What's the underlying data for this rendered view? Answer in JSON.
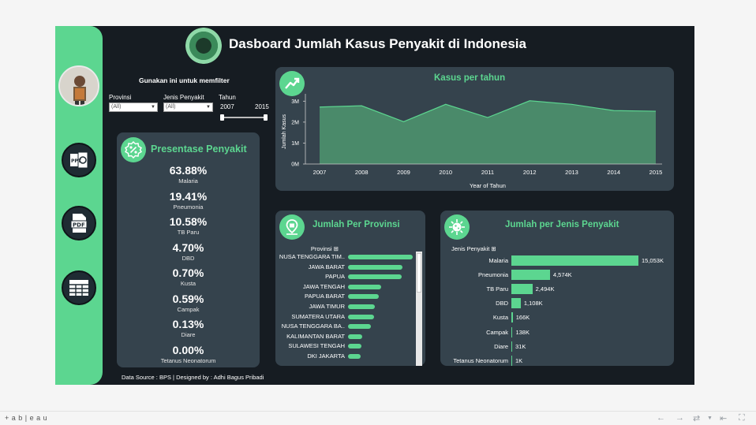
{
  "dashboard": {
    "title": "Dasboard Jumlah Kasus Penyakit di Indonesia",
    "footer": "Data Source : BPS | Designed by : Adhi Bagus Pribadi"
  },
  "sidebar": {
    "buttons": [
      {
        "name": "ppt-export-button",
        "label": "PPT"
      },
      {
        "name": "pdf-export-button",
        "label": "PDF"
      },
      {
        "name": "table-view-button",
        "label": ""
      }
    ]
  },
  "filters": {
    "heading": "Gunakan ini untuk memfilter",
    "provinsi_label": "Provinsi",
    "provinsi_value": "(All)",
    "jenis_label": "Jenis Penyakit",
    "jenis_value": "(All)",
    "tahun_label": "Tahun",
    "tahun_min": "2007",
    "tahun_max": "2015"
  },
  "presentase": {
    "title": "Presentase Penyakit",
    "items": [
      {
        "value": "63.88%",
        "label": "Malaria"
      },
      {
        "value": "19.41%",
        "label": "Pneumonia"
      },
      {
        "value": "10.58%",
        "label": "TB Paru"
      },
      {
        "value": "4.70%",
        "label": "DBD"
      },
      {
        "value": "0.70%",
        "label": "Kusta"
      },
      {
        "value": "0.59%",
        "label": "Campak"
      },
      {
        "value": "0.13%",
        "label": "Diare"
      },
      {
        "value": "0.00%",
        "label": "Tetanus Neonatorum"
      }
    ]
  },
  "chart_data": [
    {
      "type": "area",
      "title": "Kasus per tahun",
      "xlabel": "Year of Tahun",
      "ylabel": "Jumlah Kasus",
      "x": [
        2007,
        2008,
        2009,
        2010,
        2011,
        2012,
        2013,
        2014,
        2015
      ],
      "values": [
        2.72,
        2.78,
        2.02,
        2.85,
        2.22,
        3.02,
        2.85,
        2.55,
        2.52
      ],
      "y_ticks": [
        "0M",
        "1M",
        "2M",
        "3M"
      ],
      "ylim": [
        0,
        3.2
      ],
      "grid": false
    },
    {
      "type": "bar",
      "title": "Jumlah Per Provinsi",
      "header": "Provinsi",
      "categories": [
        "NUSA TENGGARA TIM..",
        "JAWA BARAT",
        "PAPUA",
        "JAWA TENGAH",
        "PAPUA BARAT",
        "JAWA TIMUR",
        "SUMATERA UTARA",
        "NUSA TENGGARA BA..",
        "KALIMANTAN BARAT",
        "SULAWESI TENGAH",
        "DKI JAKARTA"
      ],
      "values": [
        100,
        84,
        83,
        51,
        48,
        42,
        40,
        35,
        22,
        21,
        20
      ]
    },
    {
      "type": "bar",
      "title": "Jumlah per Jenis Penyakit",
      "header": "Jenis Penyakit",
      "categories": [
        "Malaria",
        "Pneumonia",
        "TB Paru",
        "DBD",
        "Kusta",
        "Campak",
        "Diare",
        "Tetanus Neonatorum"
      ],
      "values": [
        15053,
        4574,
        2494,
        1108,
        166,
        138,
        31,
        1
      ],
      "value_labels": [
        "15,053K",
        "4,574K",
        "2,494K",
        "1,108K",
        "166K",
        "138K",
        "31K",
        "1K"
      ]
    }
  ],
  "toolbar": {
    "brand": "+ a b | e a u"
  }
}
